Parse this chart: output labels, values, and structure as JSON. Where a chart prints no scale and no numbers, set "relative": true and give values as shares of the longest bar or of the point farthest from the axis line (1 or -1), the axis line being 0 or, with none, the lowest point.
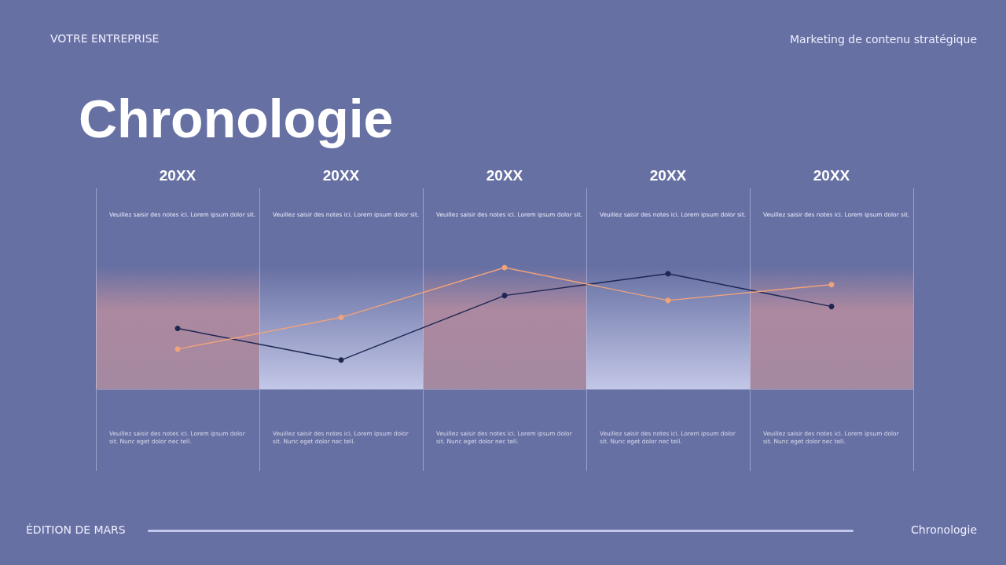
{
  "chart_data": {
    "type": "line",
    "title": "Chronologie",
    "relative": true,
    "marker": "circle",
    "line_style": "solid",
    "categories": [
      "20XX",
      "20XX",
      "20XX",
      "20XX",
      "20XX"
    ],
    "series": [
      {
        "color": "#1e2652",
        "values": [
          0.5,
          0.24,
          0.77,
          0.95,
          0.68
        ]
      },
      {
        "color": "#f0a27a",
        "values": [
          0.33,
          0.59,
          1,
          0.73,
          0.86
        ]
      }
    ],
    "annotations": [
      "VOTRE ENTREPRISE",
      "Marketing de contenu stratégique",
      "ÉDITION DE MARS",
      "Chronologie",
      "Veuillez saisir des notes ici. Lorem ipsum dolor sit.",
      "Veuillez saisir des notes ici. Lorem ipsum dolor sit.",
      "Veuillez saisir des notes ici. Lorem ipsum dolor sit.",
      "Veuillez saisir des notes ici. Lorem ipsum dolor sit.",
      "Veuillez saisir des notes ici. Lorem ipsum dolor sit.",
      "Veuillez saisir des notes ici. Lorem ipsum dolor sit. Nunc eget dolor nec tell.",
      "Veuillez saisir des notes ici. Lorem ipsum dolor sit. Nunc eget dolor nec tell.",
      "Veuillez saisir des notes ici. Lorem ipsum dolor sit. Nunc eget dolor nec tell.",
      "Veuillez saisir des notes ici. Lorem ipsum dolor sit. Nunc eget dolor nec tell.",
      "Veuillez saisir des notes ici. Lorem ipsum dolor sit. Nunc eget dolor nec tell."
    ]
  }
}
